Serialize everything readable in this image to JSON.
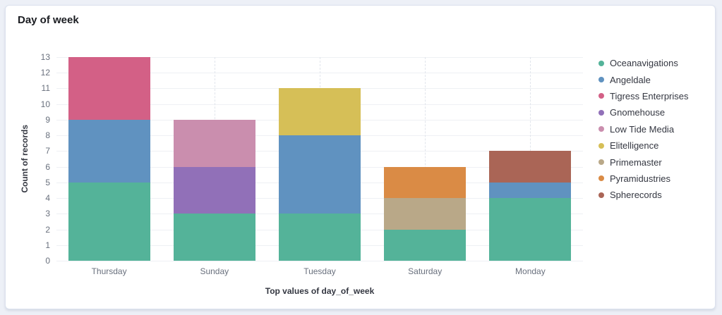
{
  "panel": {
    "title": "Day of week"
  },
  "chart_data": {
    "type": "bar",
    "stacked": true,
    "title": "Day of week",
    "xlabel": "Top values of day_of_week",
    "ylabel": "Count of records",
    "categories": [
      "Thursday",
      "Sunday",
      "Tuesday",
      "Saturday",
      "Monday"
    ],
    "series": [
      {
        "name": "Oceanavigations",
        "color": "#54B399",
        "values": [
          5,
          3,
          3,
          2,
          4
        ]
      },
      {
        "name": "Angeldale",
        "color": "#6092C0",
        "values": [
          4,
          0,
          5,
          0,
          1
        ]
      },
      {
        "name": "Tigress Enterprises",
        "color": "#D36086",
        "values": [
          4,
          0,
          0,
          0,
          0
        ]
      },
      {
        "name": "Gnomehouse",
        "color": "#9170B8",
        "values": [
          0,
          3,
          0,
          0,
          0
        ]
      },
      {
        "name": "Low Tide Media",
        "color": "#CA8EAE",
        "values": [
          0,
          3,
          0,
          0,
          0
        ]
      },
      {
        "name": "Elitelligence",
        "color": "#D6BF57",
        "values": [
          0,
          0,
          3,
          0,
          0
        ]
      },
      {
        "name": "Primemaster",
        "color": "#B9A888",
        "values": [
          0,
          0,
          0,
          2,
          0
        ]
      },
      {
        "name": "Pyramidustries",
        "color": "#DA8B45",
        "values": [
          0,
          0,
          0,
          2,
          0
        ]
      },
      {
        "name": "Spherecords",
        "color": "#AA6556",
        "values": [
          0,
          0,
          0,
          0,
          2
        ]
      }
    ],
    "ylim": [
      0,
      13
    ],
    "y_ticks": [
      0,
      1,
      2,
      3,
      4,
      5,
      6,
      7,
      8,
      9,
      10,
      11,
      12,
      13
    ],
    "grid": {
      "horizontal": "solid",
      "vertical": "dashed-at-band-centers"
    },
    "legend_position": "right"
  },
  "colors": {
    "page_background": "#edf0f7",
    "panel_background": "#ffffff",
    "panel_border": "#dce2ee",
    "grid_line": "#eef0f4",
    "grid_dashed": "#e1e5ec",
    "tick_text": "#69707d",
    "axis_title_text": "#343741",
    "panel_title_text": "#1a1c21"
  }
}
